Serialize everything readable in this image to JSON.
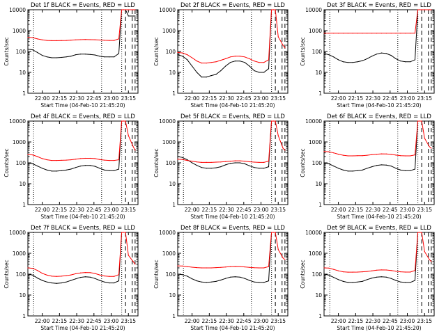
{
  "page": {
    "xtick_labels": [
      "22:00",
      "22:15",
      "22:30",
      "22:45",
      "23:00",
      "23:15"
    ],
    "xlabel": "Start Time (04-Feb-10 21:45:20)",
    "ylabel": "Counts/sec",
    "ytick_labels": [
      "1",
      "10",
      "100",
      "1000",
      "10000"
    ]
  },
  "colors": {
    "events": "#000000",
    "lld": "#ff0000",
    "axes": "#000000"
  },
  "chart_data": [
    {
      "type": "line",
      "title": "Det 1f BLACK = Events, RED = LLD",
      "x_range_min": [
        0,
        115
      ],
      "ylim": [
        1,
        10000
      ],
      "log_y": true,
      "x": [
        0,
        5,
        10,
        15,
        20,
        25,
        30,
        35,
        40,
        45,
        50,
        55,
        60,
        65,
        70,
        75,
        80,
        85,
        90,
        95,
        98,
        100,
        102,
        105,
        110,
        112
      ],
      "series": [
        {
          "values": [
            130,
            120,
            90,
            65,
            55,
            50,
            50,
            52,
            55,
            60,
            70,
            75,
            75,
            72,
            68,
            60,
            55,
            55,
            55,
            80,
            10000,
            10000,
            10000,
            5000,
            5000,
            5000
          ]
        },
        {
          "values": [
            480,
            460,
            400,
            360,
            340,
            330,
            330,
            335,
            340,
            350,
            360,
            370,
            375,
            370,
            365,
            355,
            345,
            340,
            340,
            400,
            10000,
            10000,
            10000,
            10000,
            10000,
            10000
          ]
        }
      ]
    },
    {
      "type": "line",
      "title": "Det 2f BLACK = Events, RED = LLD",
      "x_range_min": [
        0,
        115
      ],
      "ylim": [
        1,
        10000
      ],
      "log_y": true,
      "x": [
        0,
        5,
        10,
        15,
        20,
        25,
        30,
        35,
        40,
        45,
        50,
        55,
        60,
        65,
        70,
        75,
        80,
        85,
        90,
        95,
        98,
        100,
        102,
        105,
        110,
        112
      ],
      "series": [
        {
          "values": [
            70,
            60,
            40,
            20,
            10,
            6,
            6,
            7,
            8,
            12,
            20,
            30,
            35,
            35,
            30,
            20,
            12,
            10,
            10,
            15,
            10000,
            10000,
            10000,
            10000,
            10000,
            10000
          ]
        },
        {
          "values": [
            90,
            85,
            70,
            50,
            35,
            28,
            28,
            30,
            32,
            38,
            45,
            55,
            60,
            60,
            55,
            45,
            35,
            30,
            30,
            40,
            10000,
            10000,
            10000,
            500,
            200,
            150
          ]
        }
      ]
    },
    {
      "type": "line",
      "title": "Det 3f BLACK = Events, RED = LLD",
      "x_range_min": [
        0,
        115
      ],
      "ylim": [
        1,
        10000
      ],
      "log_y": true,
      "x": [
        0,
        5,
        10,
        15,
        20,
        25,
        30,
        35,
        40,
        45,
        50,
        55,
        60,
        65,
        70,
        75,
        80,
        85,
        90,
        95,
        98,
        100,
        102,
        105,
        110,
        112
      ],
      "series": [
        {
          "values": [
            80,
            70,
            55,
            40,
            32,
            30,
            30,
            32,
            36,
            45,
            60,
            75,
            85,
            80,
            65,
            45,
            35,
            32,
            32,
            40,
            10000,
            10000,
            10000,
            10000,
            10000,
            10000
          ]
        },
        {
          "values": [
            750,
            760,
            760,
            760,
            760,
            760,
            760,
            760,
            760,
            760,
            760,
            760,
            760,
            760,
            760,
            760,
            760,
            760,
            760,
            760,
            10000,
            10000,
            10000,
            10000,
            10000,
            10000
          ]
        }
      ]
    },
    {
      "type": "line",
      "title": "Det 4f BLACK = Events, RED = LLD",
      "x_range_min": [
        0,
        115
      ],
      "ylim": [
        1,
        10000
      ],
      "log_y": true,
      "x": [
        0,
        5,
        10,
        15,
        20,
        25,
        30,
        35,
        40,
        45,
        50,
        55,
        60,
        65,
        70,
        75,
        80,
        85,
        90,
        95,
        98,
        100,
        102,
        105,
        110,
        112
      ],
      "series": [
        {
          "values": [
            100,
            90,
            70,
            55,
            45,
            40,
            40,
            42,
            45,
            50,
            60,
            70,
            75,
            75,
            68,
            55,
            45,
            42,
            42,
            50,
            10000,
            10000,
            10000,
            10000,
            10000,
            10000
          ]
        },
        {
          "values": [
            250,
            240,
            200,
            160,
            140,
            130,
            130,
            132,
            135,
            140,
            150,
            160,
            165,
            165,
            160,
            145,
            135,
            130,
            130,
            140,
            10000,
            10000,
            10000,
            2000,
            600,
            400
          ]
        }
      ]
    },
    {
      "type": "line",
      "title": "Det 5f BLACK = Events, RED = LLD",
      "x_range_min": [
        0,
        115
      ],
      "ylim": [
        1,
        10000
      ],
      "log_y": true,
      "x": [
        0,
        5,
        10,
        15,
        20,
        25,
        30,
        35,
        40,
        45,
        50,
        55,
        60,
        65,
        70,
        75,
        80,
        85,
        90,
        95,
        98,
        100,
        102,
        105,
        110,
        112
      ],
      "series": [
        {
          "values": [
            200,
            180,
            140,
            100,
            75,
            60,
            55,
            55,
            58,
            65,
            80,
            95,
            100,
            100,
            90,
            72,
            60,
            55,
            55,
            65,
            10000,
            10000,
            10000,
            10000,
            10000,
            10000
          ]
        },
        {
          "values": [
            150,
            145,
            130,
            120,
            110,
            105,
            105,
            105,
            108,
            110,
            115,
            120,
            125,
            125,
            120,
            112,
            108,
            105,
            105,
            120,
            10000,
            10000,
            10000,
            2000,
            500,
            400
          ]
        }
      ]
    },
    {
      "type": "line",
      "title": "Det 6f BLACK = Events, RED = LLD",
      "x_range_min": [
        0,
        115
      ],
      "ylim": [
        1,
        10000
      ],
      "log_y": true,
      "x": [
        0,
        5,
        10,
        15,
        20,
        25,
        30,
        35,
        40,
        45,
        50,
        55,
        60,
        65,
        70,
        75,
        80,
        85,
        90,
        95,
        98,
        100,
        102,
        105,
        110,
        112
      ],
      "series": [
        {
          "values": [
            100,
            90,
            70,
            55,
            45,
            40,
            40,
            42,
            45,
            55,
            65,
            75,
            80,
            78,
            70,
            55,
            45,
            42,
            42,
            50,
            10000,
            10000,
            10000,
            10000,
            10000,
            10000
          ]
        },
        {
          "values": [
            350,
            340,
            300,
            260,
            230,
            215,
            215,
            218,
            220,
            230,
            245,
            260,
            270,
            268,
            255,
            235,
            220,
            215,
            215,
            240,
            10000,
            10000,
            10000,
            1500,
            600,
            500
          ]
        }
      ]
    },
    {
      "type": "line",
      "title": "Det 7f BLACK = Events, RED = LLD",
      "x_range_min": [
        0,
        115
      ],
      "ylim": [
        1,
        10000
      ],
      "log_y": true,
      "x": [
        0,
        5,
        10,
        15,
        20,
        25,
        30,
        35,
        40,
        45,
        50,
        55,
        60,
        65,
        70,
        75,
        80,
        85,
        90,
        95,
        98,
        100,
        102,
        105,
        110,
        112
      ],
      "series": [
        {
          "values": [
            100,
            90,
            65,
            50,
            42,
            38,
            36,
            38,
            42,
            50,
            60,
            70,
            75,
            72,
            62,
            50,
            42,
            38,
            38,
            48,
            10000,
            10000,
            10000,
            10000,
            10000,
            10000
          ]
        },
        {
          "values": [
            200,
            190,
            150,
            110,
            90,
            80,
            78,
            80,
            85,
            92,
            105,
            115,
            120,
            118,
            108,
            92,
            82,
            78,
            78,
            95,
            10000,
            10000,
            10000,
            800,
            400,
            300
          ]
        }
      ]
    },
    {
      "type": "line",
      "title": "Det 8f BLACK = Events, RED = LLD",
      "x_range_min": [
        0,
        115
      ],
      "ylim": [
        1,
        10000
      ],
      "log_y": true,
      "x": [
        0,
        5,
        10,
        15,
        20,
        25,
        30,
        35,
        40,
        45,
        50,
        55,
        60,
        65,
        70,
        75,
        80,
        85,
        90,
        95,
        98,
        100,
        102,
        105,
        110,
        112
      ],
      "series": [
        {
          "values": [
            100,
            95,
            80,
            60,
            48,
            42,
            40,
            42,
            45,
            52,
            62,
            72,
            75,
            72,
            62,
            50,
            42,
            40,
            40,
            48,
            10000,
            10000,
            10000,
            10000,
            10000,
            10000
          ]
        },
        {
          "values": [
            250,
            245,
            230,
            215,
            205,
            200,
            200,
            200,
            205,
            210,
            220,
            230,
            235,
            232,
            222,
            210,
            202,
            200,
            200,
            230,
            10000,
            10000,
            10000,
            1500,
            600,
            500
          ]
        }
      ]
    },
    {
      "type": "line",
      "title": "Det 9f BLACK = Events, RED = LLD",
      "x_range_min": [
        0,
        115
      ],
      "ylim": [
        1,
        10000
      ],
      "log_y": true,
      "x": [
        0,
        5,
        10,
        15,
        20,
        25,
        30,
        35,
        40,
        45,
        50,
        55,
        60,
        65,
        70,
        75,
        80,
        85,
        90,
        95,
        98,
        100,
        102,
        105,
        110,
        112
      ],
      "series": [
        {
          "values": [
            100,
            90,
            70,
            55,
            45,
            40,
            40,
            42,
            45,
            55,
            65,
            72,
            75,
            72,
            62,
            50,
            42,
            40,
            40,
            50,
            10000,
            10000,
            10000,
            10000,
            10000,
            10000
          ]
        },
        {
          "values": [
            200,
            195,
            170,
            145,
            130,
            125,
            125,
            126,
            130,
            135,
            145,
            155,
            160,
            158,
            150,
            138,
            130,
            126,
            126,
            150,
            10000,
            10000,
            10000,
            1200,
            500,
            400
          ]
        }
      ]
    }
  ]
}
